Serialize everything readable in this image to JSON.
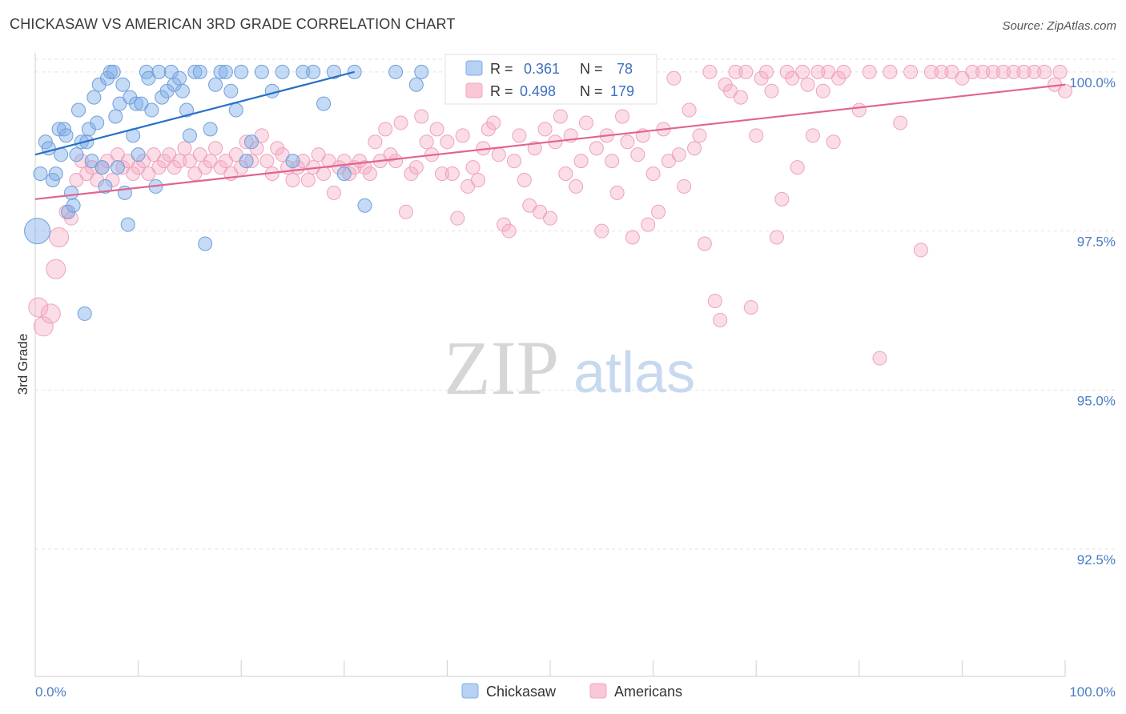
{
  "title": "CHICKASAW VS AMERICAN 3RD GRADE CORRELATION CHART",
  "source": "Source: ZipAtlas.com",
  "watermark": {
    "zip": "ZIP",
    "atlas": "atlas"
  },
  "legend": {
    "r_label": "R =",
    "n_label": "N =",
    "rows": [
      {
        "r": "0.361",
        "n": "78"
      },
      {
        "r": "0.498",
        "n": "179"
      }
    ]
  },
  "chart_data": {
    "type": "scatter",
    "title": "CHICKASAW VS AMERICAN 3RD GRADE CORRELATION CHART",
    "xlabel": "",
    "ylabel": "3rd Grade",
    "xlim": [
      0,
      100
    ],
    "ylim": [
      90.5,
      100.3
    ],
    "x_tick_labels": [
      "0.0%",
      "100.0%"
    ],
    "y_ticks": [
      92.5,
      95.0,
      97.5,
      100.0
    ],
    "y_tick_labels": [
      "92.5%",
      "95.0%",
      "97.5%",
      "100.0%"
    ],
    "grid": true,
    "legend_position": "top-center",
    "colors": {
      "chickasaw": "#7eaee6",
      "americans": "#f2a7bf",
      "chickasaw_line": "#2670c6",
      "americans_line": "#e0648f"
    },
    "series": [
      {
        "name": "Chickasaw",
        "r": 0.361,
        "n": 78,
        "trend": {
          "x1": 0,
          "y1": 98.7,
          "x2": 31,
          "y2": 100.0
        },
        "points": [
          [
            0.2,
            97.5
          ],
          [
            0.5,
            98.4
          ],
          [
            1,
            98.9
          ],
          [
            1.3,
            98.8
          ],
          [
            1.7,
            98.3
          ],
          [
            2,
            98.4
          ],
          [
            2.3,
            99.1
          ],
          [
            2.5,
            98.7
          ],
          [
            2.8,
            99.1
          ],
          [
            3,
            99.0
          ],
          [
            3.2,
            97.8
          ],
          [
            3.5,
            98.1
          ],
          [
            3.7,
            97.9
          ],
          [
            4,
            98.7
          ],
          [
            4.2,
            99.4
          ],
          [
            4.5,
            98.9
          ],
          [
            4.8,
            96.2
          ],
          [
            5,
            98.9
          ],
          [
            5.2,
            99.1
          ],
          [
            5.5,
            98.6
          ],
          [
            5.7,
            99.6
          ],
          [
            6,
            99.2
          ],
          [
            6.2,
            99.8
          ],
          [
            6.5,
            98.5
          ],
          [
            6.8,
            98.2
          ],
          [
            7,
            99.9
          ],
          [
            7.3,
            100.0
          ],
          [
            7.6,
            100.0
          ],
          [
            7.8,
            99.3
          ],
          [
            8,
            98.5
          ],
          [
            8.2,
            99.5
          ],
          [
            8.5,
            99.8
          ],
          [
            8.7,
            98.1
          ],
          [
            9,
            97.6
          ],
          [
            9.2,
            99.6
          ],
          [
            9.5,
            99.0
          ],
          [
            9.8,
            99.5
          ],
          [
            10,
            98.7
          ],
          [
            10.3,
            99.5
          ],
          [
            10.8,
            100.0
          ],
          [
            11,
            99.9
          ],
          [
            11.3,
            99.4
          ],
          [
            11.7,
            98.2
          ],
          [
            12,
            100.0
          ],
          [
            12.3,
            99.6
          ],
          [
            12.8,
            99.7
          ],
          [
            13.2,
            100.0
          ],
          [
            13.5,
            99.8
          ],
          [
            14,
            99.9
          ],
          [
            14.3,
            99.7
          ],
          [
            14.7,
            99.4
          ],
          [
            15,
            99.0
          ],
          [
            15.5,
            100.0
          ],
          [
            16,
            100.0
          ],
          [
            16.5,
            97.3
          ],
          [
            17,
            99.1
          ],
          [
            17.5,
            99.8
          ],
          [
            18,
            100.0
          ],
          [
            18.5,
            100.0
          ],
          [
            19,
            99.7
          ],
          [
            19.5,
            99.4
          ],
          [
            20,
            100.0
          ],
          [
            20.5,
            98.6
          ],
          [
            21,
            98.9
          ],
          [
            22,
            100.0
          ],
          [
            23,
            99.7
          ],
          [
            24,
            100.0
          ],
          [
            25,
            98.6
          ],
          [
            26,
            100.0
          ],
          [
            27,
            100.0
          ],
          [
            28,
            99.5
          ],
          [
            29,
            100.0
          ],
          [
            30,
            98.4
          ],
          [
            31,
            100.0
          ],
          [
            32,
            97.9
          ],
          [
            35,
            100.0
          ],
          [
            37,
            99.8
          ],
          [
            37.5,
            100.0
          ]
        ]
      },
      {
        "name": "Americans",
        "r": 0.498,
        "n": 179,
        "trend": {
          "x1": 0,
          "y1": 98.0,
          "x2": 100,
          "y2": 99.8
        },
        "points": [
          [
            0.3,
            96.3
          ],
          [
            0.8,
            96.0
          ],
          [
            1.5,
            96.2
          ],
          [
            2,
            96.9
          ],
          [
            2.3,
            97.4
          ],
          [
            3,
            97.8
          ],
          [
            3.5,
            97.7
          ],
          [
            4,
            98.3
          ],
          [
            4.5,
            98.6
          ],
          [
            5,
            98.4
          ],
          [
            5.5,
            98.5
          ],
          [
            6,
            98.3
          ],
          [
            6.5,
            98.5
          ],
          [
            7,
            98.6
          ],
          [
            7.5,
            98.3
          ],
          [
            8,
            98.7
          ],
          [
            8.5,
            98.5
          ],
          [
            9,
            98.6
          ],
          [
            9.5,
            98.4
          ],
          [
            10,
            98.5
          ],
          [
            10.5,
            98.6
          ],
          [
            11,
            98.4
          ],
          [
            11.5,
            98.7
          ],
          [
            12,
            98.5
          ],
          [
            12.5,
            98.6
          ],
          [
            13,
            98.7
          ],
          [
            13.5,
            98.5
          ],
          [
            14,
            98.6
          ],
          [
            14.5,
            98.8
          ],
          [
            15,
            98.6
          ],
          [
            15.5,
            98.4
          ],
          [
            16,
            98.7
          ],
          [
            16.5,
            98.5
          ],
          [
            17,
            98.6
          ],
          [
            17.5,
            98.8
          ],
          [
            18,
            98.5
          ],
          [
            18.5,
            98.6
          ],
          [
            19,
            98.4
          ],
          [
            19.5,
            98.7
          ],
          [
            20,
            98.5
          ],
          [
            20.5,
            98.9
          ],
          [
            21,
            98.6
          ],
          [
            21.5,
            98.8
          ],
          [
            22,
            99.0
          ],
          [
            22.5,
            98.6
          ],
          [
            23,
            98.4
          ],
          [
            23.5,
            98.8
          ],
          [
            24,
            98.7
          ],
          [
            24.5,
            98.5
          ],
          [
            25,
            98.3
          ],
          [
            25.5,
            98.5
          ],
          [
            26,
            98.6
          ],
          [
            26.5,
            98.3
          ],
          [
            27,
            98.5
          ],
          [
            27.5,
            98.7
          ],
          [
            28,
            98.4
          ],
          [
            28.5,
            98.6
          ],
          [
            29,
            98.1
          ],
          [
            29.5,
            98.5
          ],
          [
            30,
            98.6
          ],
          [
            30.5,
            98.4
          ],
          [
            31,
            98.5
          ],
          [
            31.5,
            98.6
          ],
          [
            32,
            98.5
          ],
          [
            32.5,
            98.4
          ],
          [
            33,
            98.9
          ],
          [
            33.5,
            98.6
          ],
          [
            34,
            99.1
          ],
          [
            34.5,
            98.7
          ],
          [
            35,
            98.6
          ],
          [
            35.5,
            99.2
          ],
          [
            36,
            97.8
          ],
          [
            36.5,
            98.4
          ],
          [
            37,
            98.5
          ],
          [
            37.5,
            99.3
          ],
          [
            38,
            98.9
          ],
          [
            38.5,
            98.7
          ],
          [
            39,
            99.1
          ],
          [
            39.5,
            98.4
          ],
          [
            40,
            98.9
          ],
          [
            40.5,
            98.4
          ],
          [
            41,
            97.7
          ],
          [
            41.5,
            99.0
          ],
          [
            42,
            98.2
          ],
          [
            42.5,
            98.5
          ],
          [
            43,
            98.3
          ],
          [
            43.5,
            98.8
          ],
          [
            44,
            99.1
          ],
          [
            44.5,
            99.2
          ],
          [
            45,
            98.7
          ],
          [
            45.5,
            97.6
          ],
          [
            46,
            97.5
          ],
          [
            46.5,
            98.6
          ],
          [
            47,
            99.0
          ],
          [
            47.5,
            98.3
          ],
          [
            48,
            97.9
          ],
          [
            48.5,
            98.8
          ],
          [
            49,
            97.8
          ],
          [
            49.5,
            99.1
          ],
          [
            50,
            97.7
          ],
          [
            50.5,
            98.9
          ],
          [
            51,
            99.3
          ],
          [
            51.5,
            98.4
          ],
          [
            52,
            99.0
          ],
          [
            52.5,
            98.2
          ],
          [
            53,
            98.6
          ],
          [
            53.5,
            99.2
          ],
          [
            54,
            99.6
          ],
          [
            54.5,
            98.8
          ],
          [
            55,
            97.5
          ],
          [
            55.5,
            99.0
          ],
          [
            56,
            98.6
          ],
          [
            56.5,
            98.1
          ],
          [
            57,
            99.3
          ],
          [
            57.5,
            98.9
          ],
          [
            58,
            97.4
          ],
          [
            58.5,
            98.7
          ],
          [
            59,
            99.0
          ],
          [
            59.5,
            97.6
          ],
          [
            60,
            98.4
          ],
          [
            60.5,
            97.8
          ],
          [
            61,
            99.1
          ],
          [
            61.5,
            98.6
          ],
          [
            62,
            99.9
          ],
          [
            62.5,
            98.7
          ],
          [
            63,
            98.2
          ],
          [
            63.5,
            99.4
          ],
          [
            64,
            98.8
          ],
          [
            64.5,
            99.0
          ],
          [
            65,
            97.3
          ],
          [
            65.5,
            100.0
          ],
          [
            66,
            96.4
          ],
          [
            66.5,
            96.1
          ],
          [
            67,
            99.8
          ],
          [
            67.5,
            99.7
          ],
          [
            68,
            100.0
          ],
          [
            68.5,
            99.6
          ],
          [
            69,
            100.0
          ],
          [
            69.5,
            96.3
          ],
          [
            70,
            99.0
          ],
          [
            70.5,
            99.9
          ],
          [
            71,
            100.0
          ],
          [
            71.5,
            99.7
          ],
          [
            72,
            97.4
          ],
          [
            72.5,
            98.0
          ],
          [
            73,
            100.0
          ],
          [
            73.5,
            99.9
          ],
          [
            74,
            98.5
          ],
          [
            74.5,
            100.0
          ],
          [
            75,
            99.8
          ],
          [
            75.5,
            99.0
          ],
          [
            76,
            100.0
          ],
          [
            76.5,
            99.7
          ],
          [
            77,
            100.0
          ],
          [
            77.5,
            98.9
          ],
          [
            78,
            99.9
          ],
          [
            78.5,
            100.0
          ],
          [
            80,
            99.4
          ],
          [
            81,
            100.0
          ],
          [
            82,
            95.5
          ],
          [
            83,
            100.0
          ],
          [
            84,
            99.2
          ],
          [
            85,
            100.0
          ],
          [
            86,
            97.2
          ],
          [
            87,
            100.0
          ],
          [
            88,
            100.0
          ],
          [
            89,
            100.0
          ],
          [
            90,
            99.9
          ],
          [
            91,
            100.0
          ],
          [
            92,
            100.0
          ],
          [
            93,
            100.0
          ],
          [
            94,
            100.0
          ],
          [
            95,
            100.0
          ],
          [
            96,
            100.0
          ],
          [
            97,
            100.0
          ],
          [
            98,
            100.0
          ],
          [
            99,
            99.8
          ],
          [
            99.5,
            100.0
          ],
          [
            100,
            99.7
          ]
        ]
      }
    ]
  }
}
